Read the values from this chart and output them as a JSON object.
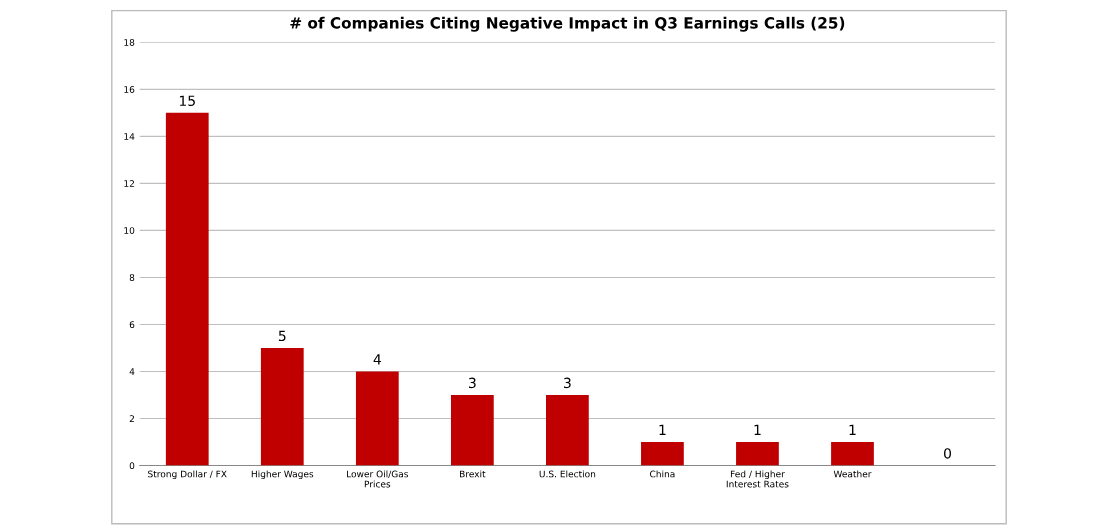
{
  "chart_data": {
    "type": "bar",
    "title": "# of Companies Citing Negative Impact in Q3 Earnings Calls (25)",
    "categories": [
      "Strong Dollar / FX",
      "Higher Wages",
      "Lower Oil/Gas\nPrices",
      "Brexit",
      "U.S. Election",
      "China",
      "Fed / Higher\nInterest Rates",
      "Weather",
      null
    ],
    "values": [
      15,
      5,
      4,
      3,
      3,
      1,
      1,
      1,
      0
    ],
    "color": "#c00000",
    "ylim": [
      0,
      18
    ],
    "yticks": [
      0,
      2,
      4,
      6,
      8,
      10,
      12,
      14,
      16,
      18
    ],
    "grid": "y",
    "data_labels": true,
    "legend": false
  }
}
